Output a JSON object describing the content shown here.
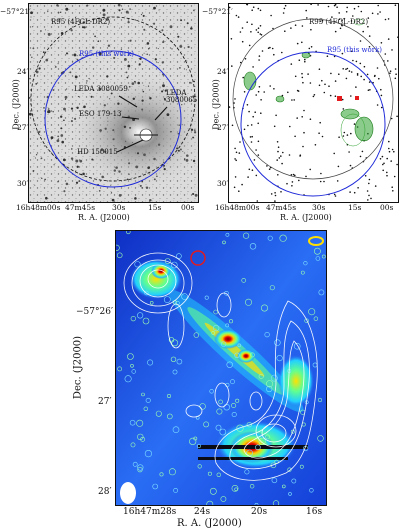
{
  "figure": {
    "panel_a": {
      "xlabel": "R. A. (J2000)",
      "ylabel": "Dec. (J2000)",
      "x_ticks": [
        "16h48m00s",
        "47m45s",
        "30s",
        "15s",
        "00s"
      ],
      "y_ticks": [
        "−57°21′",
        "24′",
        "27′",
        "30′"
      ],
      "circle_labels": [
        "R95 (4FGL-DR2)",
        "R95 (this work)"
      ],
      "source_labels": [
        "LEDA 3080059",
        "LEDA 3080065",
        "ESO 179-13",
        "HD 150015"
      ]
    },
    "panel_b": {
      "xlabel": "R. A. (J2000)",
      "ylabel": "Dec. (J2000)",
      "x_ticks": [
        "16h48m00s",
        "47m45s",
        "30s",
        "15s",
        "00s"
      ],
      "y_ticks": [
        "−57°21′",
        "24′",
        "27′",
        "30′"
      ],
      "circle_labels": [
        "R95 (4FGL-DR2)",
        "R95 (this work)"
      ]
    },
    "panel_c": {
      "xlabel": "R. A. (J2000)",
      "ylabel": "Dec. (J2000)",
      "x_ticks": [
        "16h47m28s",
        "24s",
        "20s",
        "16s"
      ],
      "y_ticks": [
        "−57°26′",
        "27′",
        "28′"
      ]
    }
  },
  "colors": {
    "blue_circle": "#1f2ad8",
    "red_marker": "#e41a1c",
    "green_contour": "#2ca02c",
    "jet_dark": "#0a1a8c"
  }
}
